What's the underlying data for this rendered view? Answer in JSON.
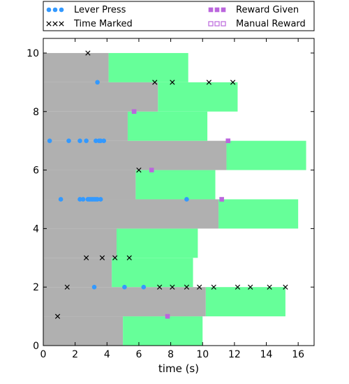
{
  "chart_data": {
    "type": "scatter",
    "title": "",
    "xlabel": "time (s)",
    "ylabel": "",
    "xlim": [
      0,
      17
    ],
    "ylim": [
      0,
      10.5
    ],
    "x_ticks": [
      0,
      2,
      4,
      6,
      8,
      10,
      12,
      14,
      16
    ],
    "y_ticks": [
      0,
      2,
      4,
      6,
      8,
      10
    ],
    "grid": false,
    "legend_position": "top",
    "colors": {
      "gray_bar": "#b0b0b0",
      "green_bar": "#66ff99",
      "lever_press": "#3399ff",
      "time_marked": "#000000",
      "reward_given": "#bb66dd",
      "manual_reward": "#bb66dd"
    },
    "legend": [
      {
        "label": "Lever Press",
        "marker": "circle"
      },
      {
        "label": "Time Marked",
        "marker": "x"
      },
      {
        "label": "Reward Given",
        "marker": "square-filled"
      },
      {
        "label": "Manual Reward",
        "marker": "square-open"
      }
    ],
    "trials": [
      {
        "y": 0,
        "gray_end": 5.0,
        "green_end": 10.0
      },
      {
        "y": 1,
        "gray_end": 10.2,
        "green_end": 15.2
      },
      {
        "y": 2,
        "gray_end": 4.3,
        "green_end": 9.4
      },
      {
        "y": 3,
        "gray_end": 4.6,
        "green_end": 9.7
      },
      {
        "y": 4,
        "gray_end": 11.0,
        "green_end": 16.0
      },
      {
        "y": 5,
        "gray_end": 5.8,
        "green_end": 10.8
      },
      {
        "y": 6,
        "gray_end": 11.5,
        "green_end": 16.5
      },
      {
        "y": 7,
        "gray_end": 5.3,
        "green_end": 10.3
      },
      {
        "y": 8,
        "gray_end": 7.2,
        "green_end": 12.2
      },
      {
        "y": 9,
        "gray_end": 4.1,
        "green_end": 9.1
      }
    ],
    "series": [
      {
        "name": "Lever Press",
        "marker": "circle",
        "points": [
          [
            3.2,
            2
          ],
          [
            5.1,
            2
          ],
          [
            6.3,
            2
          ],
          [
            1.1,
            5
          ],
          [
            2.3,
            5
          ],
          [
            2.5,
            5
          ],
          [
            2.8,
            5
          ],
          [
            2.9,
            5
          ],
          [
            3.0,
            5
          ],
          [
            3.1,
            5
          ],
          [
            3.2,
            5
          ],
          [
            3.3,
            5
          ],
          [
            3.4,
            5
          ],
          [
            3.6,
            5
          ],
          [
            9.0,
            5
          ],
          [
            0.4,
            7
          ],
          [
            1.6,
            7
          ],
          [
            2.3,
            7
          ],
          [
            2.7,
            7
          ],
          [
            3.3,
            7
          ],
          [
            3.5,
            7
          ],
          [
            3.6,
            7
          ],
          [
            3.8,
            7
          ],
          [
            3.4,
            9
          ]
        ]
      },
      {
        "name": "Time Marked",
        "marker": "x",
        "points": [
          [
            0.9,
            1
          ],
          [
            1.5,
            2
          ],
          [
            7.3,
            2
          ],
          [
            8.1,
            2
          ],
          [
            9.0,
            2
          ],
          [
            9.8,
            2
          ],
          [
            10.7,
            2
          ],
          [
            12.2,
            2
          ],
          [
            13.0,
            2
          ],
          [
            14.2,
            2
          ],
          [
            15.2,
            2
          ],
          [
            2.7,
            3
          ],
          [
            3.7,
            3
          ],
          [
            4.5,
            3
          ],
          [
            5.4,
            3
          ],
          [
            6.0,
            6
          ],
          [
            7.0,
            9
          ],
          [
            8.1,
            9
          ],
          [
            10.4,
            9
          ],
          [
            11.9,
            9
          ],
          [
            2.8,
            10
          ]
        ]
      },
      {
        "name": "Reward Given",
        "marker": "square-filled",
        "points": [
          [
            7.8,
            1
          ],
          [
            11.2,
            5
          ],
          [
            6.8,
            6
          ],
          [
            11.6,
            7
          ],
          [
            5.7,
            8
          ]
        ]
      },
      {
        "name": "Manual Reward",
        "marker": "square-open",
        "points": []
      }
    ]
  }
}
